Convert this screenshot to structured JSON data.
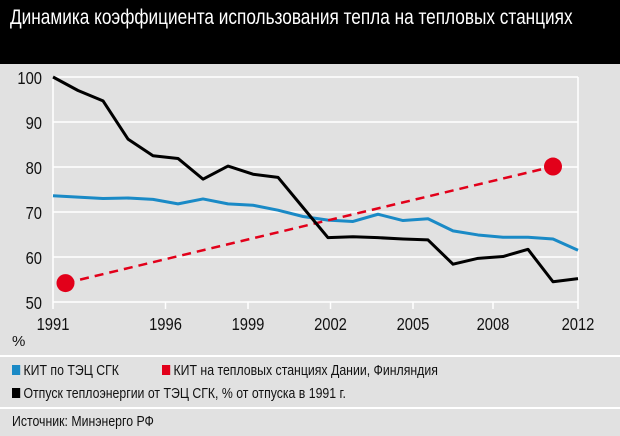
{
  "chart_data": {
    "type": "line",
    "title": "Динамика коэффициента использования тепла на тепловых станциях",
    "ylabel": "%",
    "xlabel": "",
    "ylim": [
      50,
      100
    ],
    "xlim": [
      1991,
      2012
    ],
    "grid": true,
    "y_ticks": [
      "100",
      "90",
      "80",
      "70",
      "60",
      "50"
    ],
    "x_ticks": [
      "1991",
      "1996",
      "1999",
      "2002",
      "2005",
      "2008",
      "2012"
    ],
    "legend_position": "bottom",
    "series": [
      {
        "name": "КИТ по ТЭЦ СГК",
        "color": "#1a8ac6",
        "style": "solid",
        "x": [
          1991,
          1992,
          1993,
          1994,
          1995,
          1996,
          1997,
          1998,
          1999,
          2000,
          2001,
          2002,
          2003,
          2004,
          2005,
          2006,
          2007,
          2008,
          2009,
          2010,
          2011,
          2012
        ],
        "values": [
          73.6,
          73.3,
          73.0,
          73.1,
          72.8,
          71.8,
          72.9,
          71.8,
          71.5,
          70.4,
          69.0,
          68.2,
          67.9,
          69.5,
          68.1,
          68.5,
          65.8,
          64.9,
          64.4,
          64.4,
          64.0,
          61.5
        ]
      },
      {
        "name": "КИТ на тепловых станциях Дании, Финляндия",
        "color": "#e2001a",
        "style": "dashed",
        "x": [
          1991.5,
          2011
        ],
        "values": [
          54.2,
          80.1
        ]
      },
      {
        "name": "Отпуск теплоэнергии от ТЭЦ СГК, % от отпуска в 1991 г.",
        "color": "#000000",
        "style": "solid",
        "x": [
          1991,
          1992,
          1993,
          1994,
          1995,
          1996,
          1997,
          1998,
          1999,
          2000,
          2001,
          2002,
          2003,
          2004,
          2005,
          2006,
          2007,
          2008,
          2009,
          2010,
          2011,
          2012
        ],
        "values": [
          100,
          97.0,
          94.7,
          86.2,
          82.5,
          81.9,
          77.3,
          80.2,
          78.4,
          77.7,
          71.0,
          64.3,
          64.5,
          64.3,
          64.0,
          63.8,
          58.4,
          59.7,
          60.1,
          61.7,
          54.5,
          55.2
        ]
      }
    ],
    "source": "Источник: Минэнерго РФ"
  }
}
